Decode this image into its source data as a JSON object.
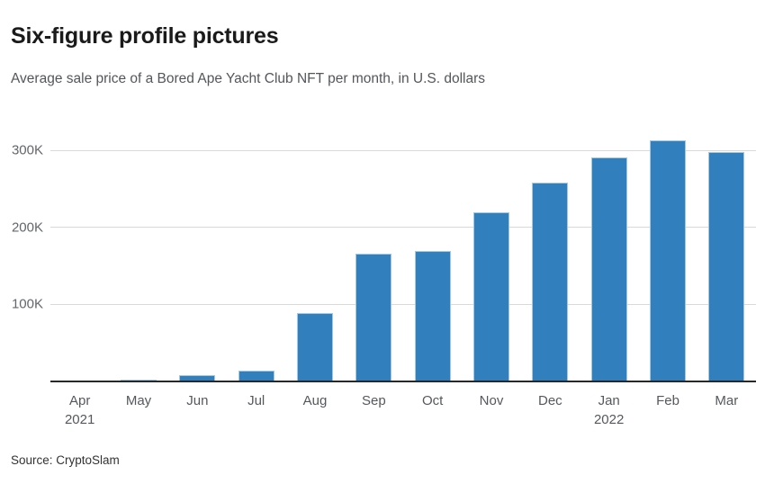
{
  "header": {
    "title": "Six-figure profile pictures",
    "subtitle": "Average sale price of a Bored Ape Yacht Club NFT per month, in U.S. dollars"
  },
  "footer": {
    "source": "Source: CryptoSlam"
  },
  "chart_data": {
    "type": "bar",
    "title": "Six-figure profile pictures",
    "subtitle": "Average sale price of a Bored Ape Yacht Club NFT per month, in U.S. dollars",
    "categories": [
      "Apr",
      "May",
      "Jun",
      "Jul",
      "Aug",
      "Sep",
      "Oct",
      "Nov",
      "Dec",
      "Jan",
      "Feb",
      "Mar"
    ],
    "year_labels": [
      {
        "category_index": 0,
        "label": "2021"
      },
      {
        "category_index": 9,
        "label": "2022"
      }
    ],
    "values": [
      1000,
      2500,
      8000,
      14000,
      89000,
      166000,
      169000,
      219000,
      258000,
      291000,
      313000,
      298000
    ],
    "unit": "U.S. dollars",
    "xlabel": "",
    "ylabel": "",
    "ylim": [
      0,
      330000
    ],
    "yticks": [
      {
        "value": 100000,
        "label": "100K"
      },
      {
        "value": 200000,
        "label": "200K"
      },
      {
        "value": 300000,
        "label": "300K"
      }
    ],
    "grid": "horizontal",
    "legend": "none",
    "bar_color": "#3180bd",
    "bar_edge_color": "#a3c8e2",
    "gridline_color": "#d9d9d9",
    "axis_color": "#26282a",
    "source": "Source: CryptoSlam"
  }
}
